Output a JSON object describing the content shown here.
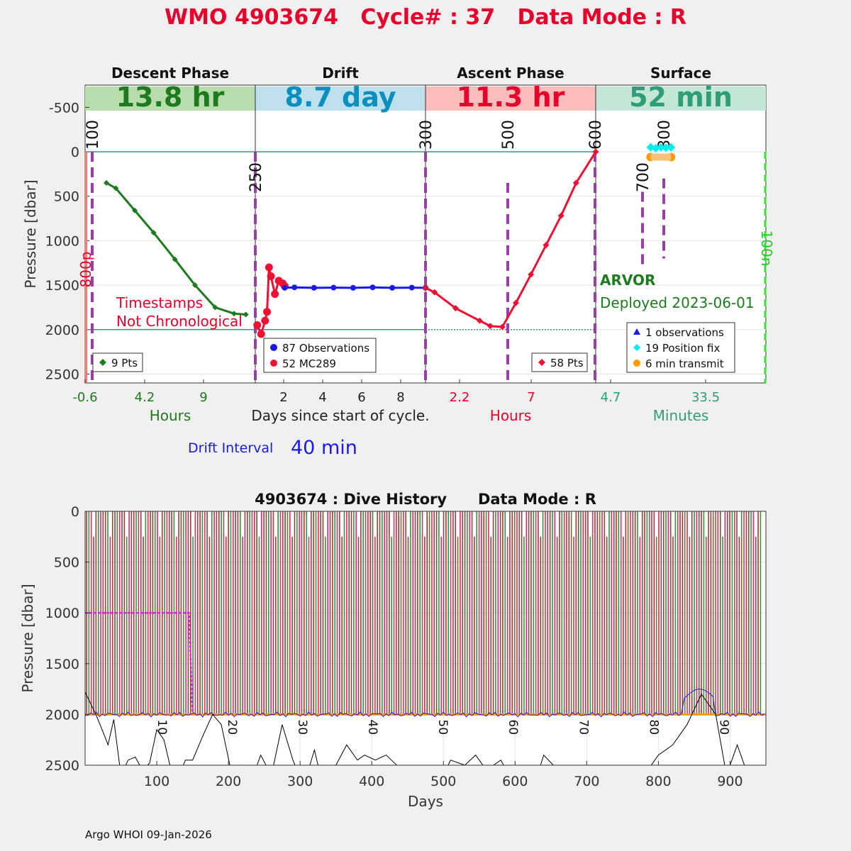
{
  "header": {
    "title": "WMO 4903674   Cycle# : 37   Data Mode : R",
    "title_color": "#e8002a"
  },
  "phases": [
    {
      "name": "Descent Phase",
      "duration": "13.8 hr",
      "band_color": "#b9dcac",
      "text_color": "#1e7a1e",
      "axis_label": "Hours",
      "axis_color": "#1e7a1e",
      "ticks": [
        "-0.6",
        "4.2",
        "9"
      ],
      "legend": [
        {
          "label": "9 Pts",
          "marker": "green-diamond"
        }
      ]
    },
    {
      "name": "Drift",
      "duration": "8.7 day",
      "band_color": "#bde0ec",
      "text_color": "#0a8fbe",
      "axis_label": "Days since start of cycle.",
      "axis_color": "#222222",
      "ticks": [
        "2",
        "4",
        "6",
        "8"
      ],
      "legend": [
        {
          "label": "87 Observations",
          "marker": "blue-dot"
        },
        {
          "label": "52 MC289",
          "marker": "red-dot"
        }
      ]
    },
    {
      "name": "Ascent Phase",
      "duration": "11.3 hr",
      "band_color": "#fbbcbc",
      "text_color": "#e8002a",
      "axis_label": "Hours",
      "axis_color": "#e8002a",
      "ticks": [
        "2.2",
        "7"
      ],
      "legend": [
        {
          "label": "58 Pts",
          "marker": "red-diamond"
        }
      ]
    },
    {
      "name": "Surface",
      "duration": "52 min",
      "band_color": "#c4e6d6",
      "text_color": "#2e9e78",
      "axis_label": "Minutes",
      "axis_color": "#2e9e78",
      "ticks": [
        "4.7",
        "33.5"
      ],
      "legend": [
        {
          "label": "1 observations",
          "marker": "blue-triangle"
        },
        {
          "label": "19 Position fix",
          "marker": "cyan-diamond"
        },
        {
          "label": "6 min transmit",
          "marker": "orange-dot"
        }
      ]
    }
  ],
  "top_panel": {
    "ylabel": "Pressure [dbar]",
    "yticks": [
      "-500",
      "0",
      "500",
      "1000",
      "1500",
      "2000",
      "2500"
    ],
    "ylim": [
      -750,
      2600
    ],
    "vlines": [
      "100",
      "250",
      "300",
      "500",
      "600",
      "700",
      "800"
    ],
    "side_labels": {
      "left": "800p",
      "right": "100n"
    },
    "annotation_lines": [
      "Timestamps",
      "Not Chronological"
    ],
    "float_model": "ARVOR",
    "deployed": "Deployed 2023-06-01",
    "drift_interval_label": "Drift Interval",
    "drift_interval_value": "40 min"
  },
  "chart_data": [
    {
      "type": "line",
      "title": "WMO 4903674   Cycle# : 37   Data Mode : R",
      "ylabel": "Pressure [dbar]",
      "ylim": [
        -750,
        2600
      ],
      "series": [
        {
          "name": "9 Pts",
          "x_units": "Hours",
          "x": [
            1.2,
            2.0,
            3.6,
            5.2,
            7.0,
            8.7,
            10.4,
            12.0,
            13.0
          ],
          "y": [
            350,
            410,
            660,
            910,
            1210,
            1500,
            1750,
            1820,
            1830
          ]
        },
        {
          "name": "87 Observations",
          "x_units": "Days",
          "x": [
            1.5,
            2,
            3,
            4,
            5,
            6,
            7,
            8,
            8.7
          ],
          "y": [
            1530,
            1525,
            1530,
            1528,
            1530,
            1525,
            1530,
            1528,
            1530
          ]
        },
        {
          "name": "52 MC289",
          "x_units": "Days",
          "x": [
            0.1,
            0.3,
            0.5,
            0.6,
            0.7,
            0.8,
            1.0,
            1.2,
            1.4,
            1.5
          ],
          "y": [
            1950,
            2050,
            1900,
            1800,
            1300,
            1400,
            1600,
            1450,
            1480,
            1510
          ]
        },
        {
          "name": "58 Pts",
          "x_units": "Hours",
          "x": [
            0,
            0.6,
            2.0,
            3.6,
            4.3,
            5.1,
            6.0,
            7.0,
            8.0,
            9.0,
            10.0,
            11.3
          ],
          "y": [
            1530,
            1580,
            1760,
            1900,
            1960,
            1970,
            1700,
            1380,
            1050,
            720,
            350,
            0
          ]
        },
        {
          "name": "19 Position fix",
          "x_units": "Minutes",
          "x": [
            2,
            8,
            14,
            20,
            26
          ],
          "y": [
            -50,
            -40,
            -50,
            -45,
            -50
          ]
        },
        {
          "name": "6 min transmit",
          "x_units": "Minutes",
          "x": [
            2,
            26
          ],
          "y": [
            60,
            60
          ]
        }
      ]
    },
    {
      "type": "line",
      "title": "4903674 : Dive History      Data Mode : R",
      "xlabel": "Days",
      "ylabel": "Pressure [dbar]",
      "xlim": [
        0,
        950
      ],
      "ylim": [
        0,
        2500
      ],
      "xticks": [
        "100",
        "200",
        "300",
        "400",
        "500",
        "600",
        "700",
        "800",
        "900"
      ],
      "yticks": [
        "0",
        "500",
        "1000",
        "1500",
        "2000",
        "2500"
      ],
      "cycle_labels": [
        "10",
        "20",
        "30",
        "40",
        "50",
        "60",
        "70",
        "80",
        "90"
      ],
      "cycle_interval_days": 10,
      "park_depth": 2000,
      "park_target_history": {
        "x": [
          0,
          143,
          145,
          150
        ],
        "y": [
          1000,
          1000,
          1000,
          2000
        ]
      }
    }
  ],
  "bottom_panel": {
    "title": "4903674 : Dive History      Data Mode : R",
    "xlabel": "Days",
    "ylabel": "Pressure [dbar]"
  },
  "footer": "Argo WHOI 09-Jan-2026"
}
